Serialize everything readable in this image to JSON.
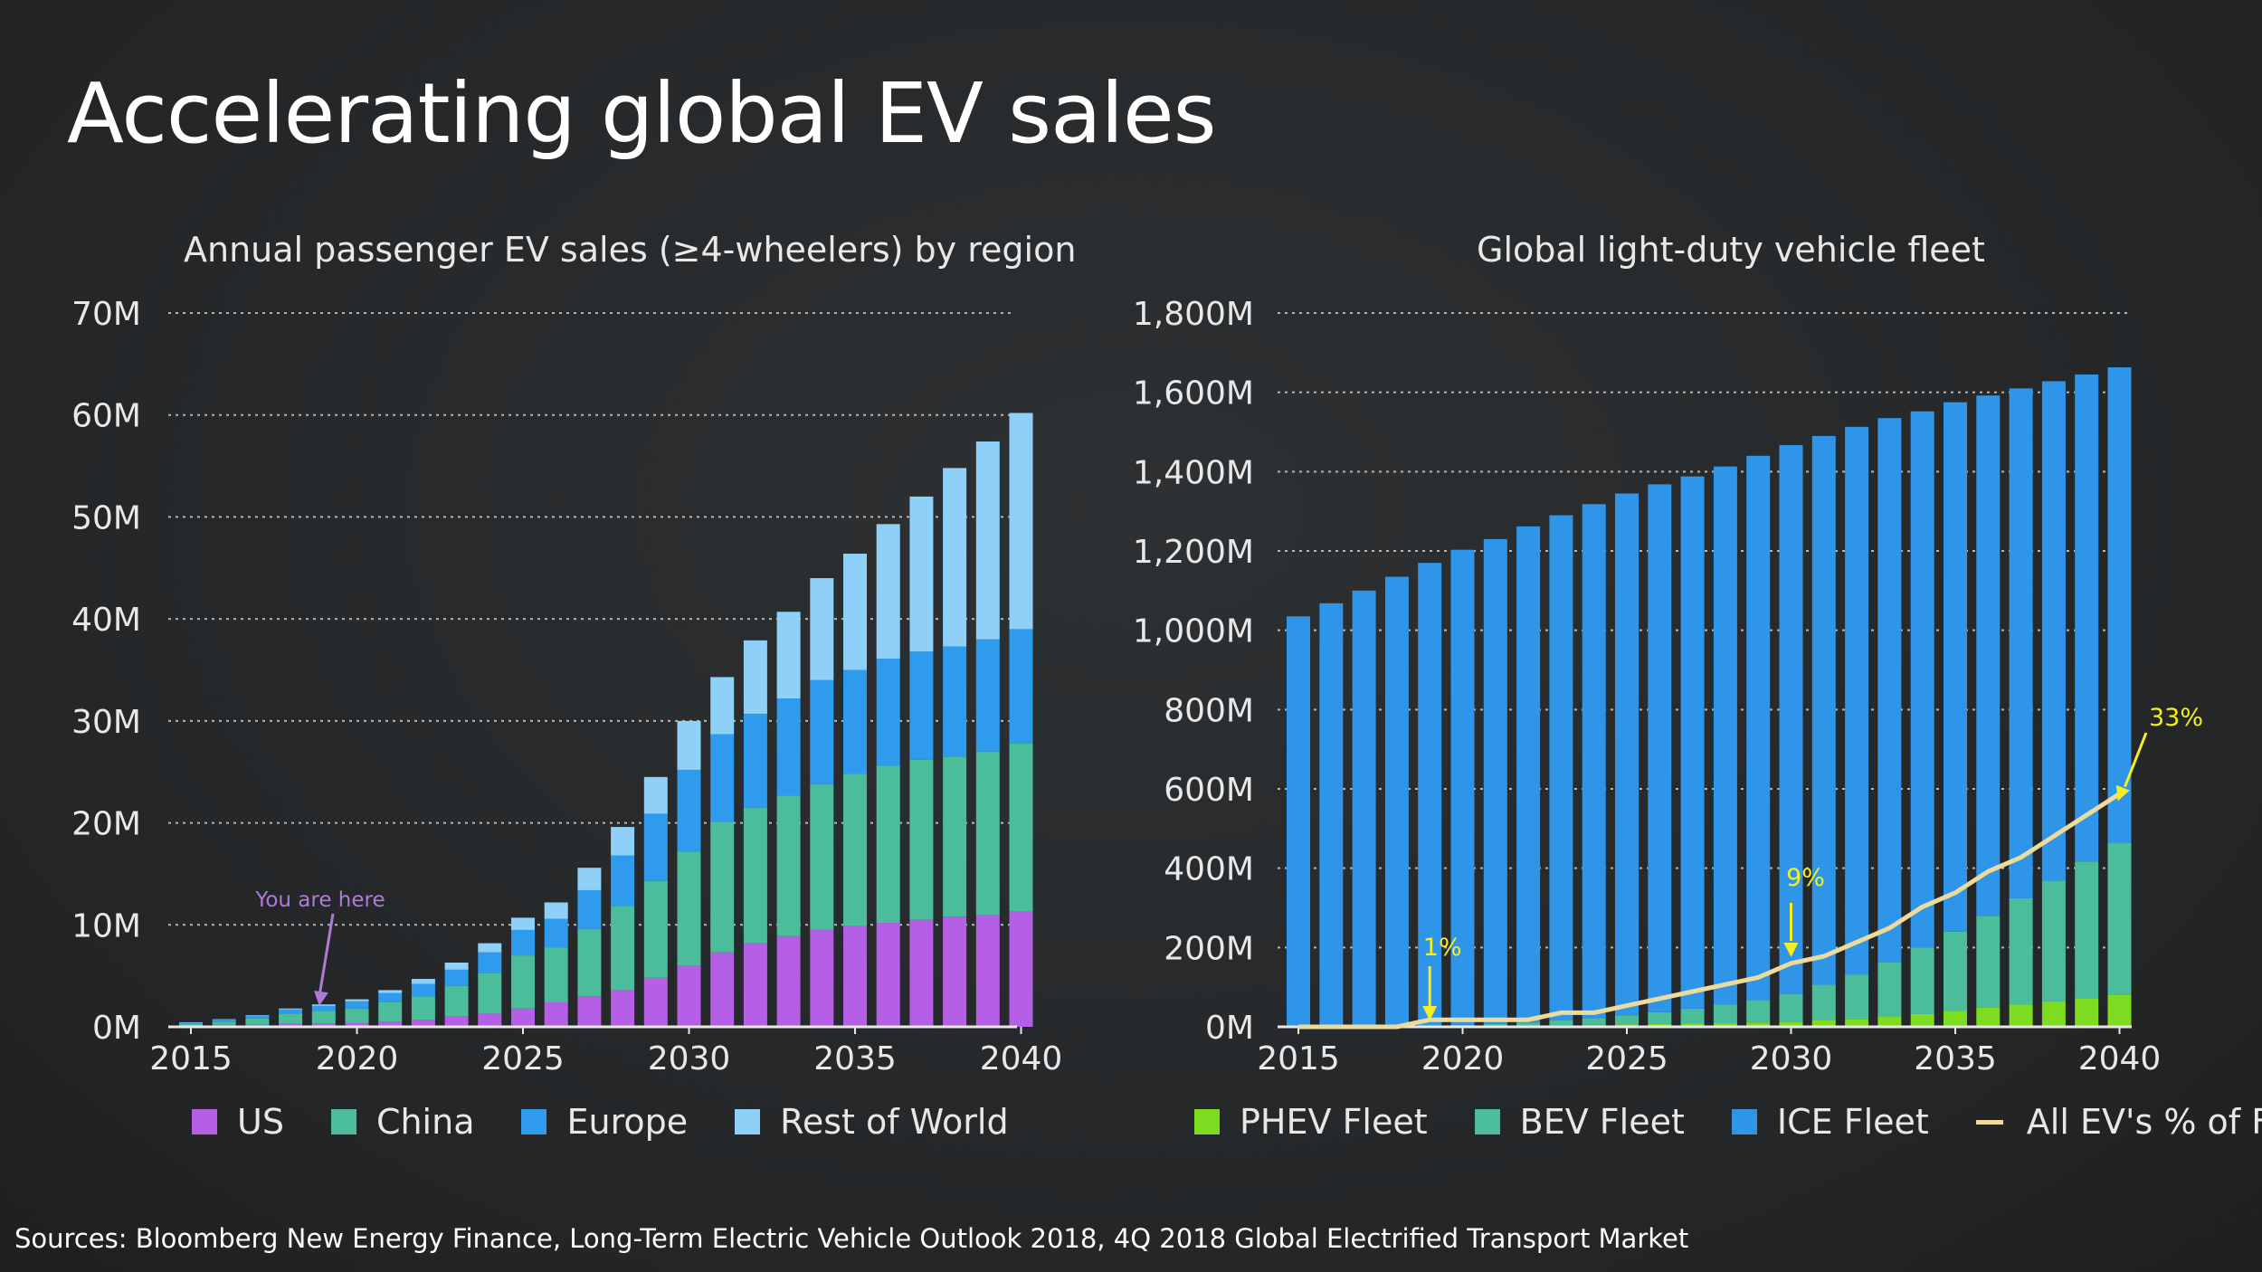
{
  "page": {
    "title": "Accelerating global EV sales",
    "sources": "Sources: Bloomberg New Energy Finance, Long-Term Electric Vehicle Outlook 2018, 4Q 2018 Global Electrified Transport Market"
  },
  "colors": {
    "us": "#b45fe6",
    "china": "#4cbd9b",
    "europe": "#2f9bed",
    "row": "#8ed0f8",
    "phev": "#7ddc1f",
    "bev": "#4cbd9b",
    "ice": "#2f95e8",
    "ev_share": "#eedb9c",
    "annotation_left": "#b07ad8",
    "annotation_right": "#f5ef1f",
    "grid": "#cfcfcf"
  },
  "chart_data": [
    {
      "type": "bar",
      "stacked": true,
      "title": "Annual passenger EV sales (≥4-wheelers) by region",
      "xlabel": "",
      "ylabel": "",
      "x": [
        2015,
        2016,
        2017,
        2018,
        2019,
        2020,
        2021,
        2022,
        2023,
        2024,
        2025,
        2026,
        2027,
        2028,
        2029,
        2030,
        2031,
        2032,
        2033,
        2034,
        2035,
        2036,
        2037,
        2038,
        2039,
        2040
      ],
      "x_ticks": [
        "2015",
        "2020",
        "2025",
        "2030",
        "2035",
        "2040"
      ],
      "y_ticks": [
        "0M",
        "10M",
        "20M",
        "30M",
        "40M",
        "50M",
        "60M",
        "70M"
      ],
      "ylim": [
        0,
        70
      ],
      "units": "millions",
      "grid": "horizontal dotted",
      "legend_position": "bottom",
      "series": [
        {
          "name": "US",
          "values": [
            0.1,
            0.2,
            0.2,
            0.3,
            0.35,
            0.4,
            0.5,
            0.7,
            1.0,
            1.3,
            1.8,
            2.4,
            3.0,
            3.6,
            4.8,
            6.0,
            7.3,
            8.2,
            8.9,
            9.5,
            9.9,
            10.2,
            10.5,
            10.8,
            11.0,
            11.3
          ]
        },
        {
          "name": "China",
          "values": [
            0.2,
            0.3,
            0.6,
            1.0,
            1.2,
            1.4,
            1.9,
            2.3,
            3.0,
            4.0,
            5.2,
            5.4,
            6.6,
            8.2,
            9.5,
            11.2,
            12.8,
            13.3,
            13.8,
            14.3,
            14.9,
            15.4,
            15.7,
            15.7,
            16.0,
            16.5
          ]
        },
        {
          "name": "Europe",
          "values": [
            0.1,
            0.2,
            0.3,
            0.4,
            0.5,
            0.7,
            0.9,
            1.2,
            1.6,
            2.0,
            2.5,
            2.8,
            3.8,
            5.0,
            6.6,
            8.0,
            8.6,
            9.2,
            9.5,
            10.2,
            10.2,
            10.5,
            10.6,
            10.8,
            11.0,
            11.2
          ]
        },
        {
          "name": "Rest of World",
          "values": [
            0.05,
            0.05,
            0.05,
            0.1,
            0.15,
            0.2,
            0.3,
            0.5,
            0.7,
            0.9,
            1.2,
            1.6,
            2.2,
            2.8,
            3.6,
            4.8,
            5.6,
            7.2,
            8.5,
            10.0,
            11.4,
            13.2,
            15.2,
            17.5,
            19.4,
            21.2
          ]
        }
      ],
      "annotations": [
        {
          "text": "You are here",
          "x": 2019
        }
      ]
    },
    {
      "type": "bar",
      "stacked": true,
      "title": "Global light-duty vehicle fleet",
      "xlabel": "",
      "ylabel": "",
      "x": [
        2015,
        2016,
        2017,
        2018,
        2019,
        2020,
        2021,
        2022,
        2023,
        2024,
        2025,
        2026,
        2027,
        2028,
        2029,
        2030,
        2031,
        2032,
        2033,
        2034,
        2035,
        2036,
        2037,
        2038,
        2039,
        2040
      ],
      "x_ticks": [
        "2015",
        "2020",
        "2025",
        "2030",
        "2035",
        "2040"
      ],
      "y_ticks": [
        "0M",
        "200M",
        "400M",
        "600M",
        "800M",
        "1,000M",
        "1,200M",
        "1,400M",
        "1,600M",
        "1,800M"
      ],
      "ylim": [
        0,
        1800
      ],
      "units": "millions",
      "grid": "horizontal dotted",
      "legend_position": "bottom",
      "totals": [
        1035,
        1068,
        1100,
        1135,
        1170,
        1203,
        1230,
        1262,
        1290,
        1318,
        1345,
        1368,
        1388,
        1413,
        1440,
        1467,
        1490,
        1513,
        1535,
        1552,
        1575,
        1592,
        1610,
        1628,
        1645,
        1663
      ],
      "series": [
        {
          "name": "PHEV Fleet",
          "values": [
            0,
            0,
            0,
            0,
            1,
            2,
            2,
            3,
            4,
            5,
            6,
            7,
            8,
            9,
            11,
            13,
            16,
            20,
            25,
            32,
            40,
            48,
            56,
            64,
            72,
            80
          ]
        },
        {
          "name": "BEV Fleet",
          "values": [
            0,
            0,
            0,
            0,
            2,
            3,
            5,
            8,
            12,
            17,
            23,
            30,
            38,
            47,
            57,
            70,
            90,
            112,
            138,
            168,
            200,
            232,
            268,
            305,
            345,
            385
          ]
        },
        {
          "name": "ICE Fleet",
          "values": [
            1035,
            1068,
            1100,
            1135,
            1167,
            1198,
            1223,
            1251,
            1274,
            1296,
            1316,
            1331,
            1342,
            1357,
            1372,
            1384,
            1384,
            1381,
            1372,
            1352,
            1335,
            1312,
            1286,
            1259,
            1228,
            1198
          ]
        }
      ],
      "line_series": {
        "name": "All EV's % of Fleet",
        "values": [
          0,
          0,
          0,
          0,
          1,
          1,
          1,
          1,
          2,
          2,
          3,
          4,
          5,
          6,
          7,
          9,
          10,
          12,
          14,
          17,
          19,
          22,
          24,
          27,
          30,
          33
        ],
        "units": "percent"
      },
      "annotations": [
        {
          "text": "1%",
          "x": 2019
        },
        {
          "text": "9%",
          "x": 2030
        },
        {
          "text": "33%",
          "x": 2040
        }
      ]
    }
  ]
}
